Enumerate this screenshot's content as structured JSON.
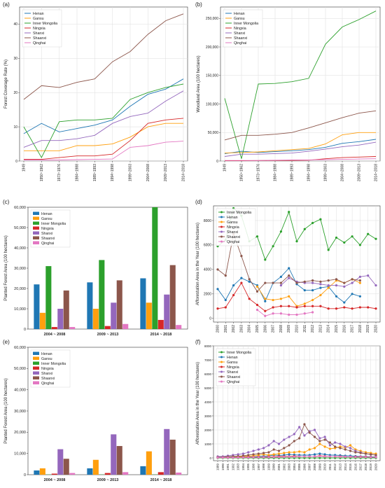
{
  "colors": {
    "Henan": "#1f77b4",
    "Gansu": "#ff9f0e",
    "Inner Mongolia": "#2ca02c",
    "Ningxia": "#d62728",
    "Shanxi": "#9467bd",
    "Shaanxi": "#8c564b",
    "Qinghai": "#e377c2"
  },
  "chart_data": [
    {
      "panel": "(a)",
      "type": "line",
      "ylabel": "Forest Coverage Rate (%)",
      "xlabel": "",
      "categories": [
        "1949",
        "1950~1962",
        "1973~1976",
        "1984~1988",
        "1989~1993",
        "1994~1998",
        "1999~2003",
        "2004~2008",
        "2009~2013",
        "2014~2018"
      ],
      "ylim": [
        0,
        45
      ],
      "yticks": [
        0,
        10,
        20,
        30,
        40
      ],
      "series": [
        {
          "name": "Henan",
          "values": [
            8,
            11,
            8.5,
            9.5,
            10.5,
            12,
            16,
            19.5,
            21,
            24
          ]
        },
        {
          "name": "Gansu",
          "values": [
            3,
            3,
            3,
            4.5,
            4.5,
            5,
            7,
            10,
            11,
            11
          ]
        },
        {
          "name": "Inner Mongolia",
          "values": [
            10,
            1,
            11.5,
            12,
            12,
            12.5,
            18,
            20,
            21.5,
            22.5
          ]
        },
        {
          "name": "Ningxia",
          "values": [
            0.5,
            0.5,
            1,
            1.5,
            1.5,
            2,
            6,
            11,
            12,
            12.5
          ]
        },
        {
          "name": "Shanxi",
          "values": [
            4,
            6,
            6,
            6.5,
            7.5,
            11,
            13,
            14,
            17.5,
            20.5
          ]
        },
        {
          "name": "Shaanxi",
          "values": [
            18,
            22,
            21.5,
            23,
            24,
            29,
            32,
            37,
            41,
            43
          ]
        },
        {
          "name": "Qinghai",
          "values": [
            0.3,
            0.3,
            0.3,
            0.4,
            0.5,
            0.6,
            4,
            4.5,
            5.5,
            5.8
          ]
        }
      ]
    },
    {
      "panel": "(b)",
      "type": "line",
      "ylabel": "Woodland Area (100 hectares)",
      "xlabel": "",
      "categories": [
        "1949",
        "1950~1962",
        "1973~1976",
        "1984~1988",
        "1989~1993",
        "1994~1998",
        "1999~2003",
        "2004~2008",
        "2009~2013",
        "2014~2018"
      ],
      "ylim": [
        0,
        270000
      ],
      "yticks": [
        0,
        50000,
        100000,
        150000,
        200000,
        250000
      ],
      "ytick_labels": [
        "0",
        "50,000",
        "100,000",
        "150,000",
        "200,000",
        "250,000"
      ],
      "series": [
        {
          "name": "Henan",
          "values": [
            13000,
            17000,
            15000,
            16500,
            18000,
            20000,
            24000,
            31000,
            34000,
            38000
          ]
        },
        {
          "name": "Gansu",
          "values": [
            14000,
            15000,
            16000,
            18000,
            20000,
            22000,
            30000,
            46000,
            50000,
            50000
          ]
        },
        {
          "name": "Inner Mongolia",
          "values": [
            110000,
            4000,
            135000,
            136000,
            139000,
            145000,
            205000,
            235000,
            248000,
            263000
          ]
        },
        {
          "name": "Ningxia",
          "values": [
            500,
            500,
            800,
            1000,
            1200,
            1500,
            4000,
            6000,
            7000,
            8000
          ]
        },
        {
          "name": "Shanxi",
          "values": [
            8000,
            12000,
            12000,
            13000,
            14000,
            17000,
            21000,
            25000,
            28000,
            33000
          ]
        },
        {
          "name": "Shaanxi",
          "values": [
            37000,
            45000,
            45000,
            47000,
            50000,
            58000,
            67000,
            76000,
            84000,
            88000
          ]
        },
        {
          "name": "Qinghai",
          "values": [
            1000,
            1000,
            1000,
            1500,
            2000,
            2000,
            2500,
            3000,
            3500,
            4000
          ]
        }
      ]
    },
    {
      "panel": "(c)",
      "type": "bar",
      "ylabel": "Planted Forest Area (100 hectares)",
      "xlabel": "",
      "categories": [
        "2004 ~ 2008",
        "2009 ~ 2013",
        "2014 ~ 2018"
      ],
      "ylim": [
        0,
        60000
      ],
      "yticks": [
        0,
        10000,
        20000,
        30000,
        40000,
        50000,
        60000
      ],
      "ytick_labels": [
        "0",
        "10,000",
        "20,000",
        "30,000",
        "40,000",
        "50,000",
        "60,000"
      ],
      "series": [
        {
          "name": "Henan",
          "values": [
            22000,
            23000,
            25000
          ]
        },
        {
          "name": "Gansu",
          "values": [
            8000,
            10000,
            13000
          ]
        },
        {
          "name": "Inner Mongolia",
          "values": [
            31000,
            34000,
            60000
          ]
        },
        {
          "name": "Ningxia",
          "values": [
            1000,
            1500,
            4500
          ]
        },
        {
          "name": "Shanxi",
          "values": [
            10000,
            13000,
            17000
          ]
        },
        {
          "name": "Shaanxi",
          "values": [
            19000,
            24000,
            31500
          ]
        },
        {
          "name": "Qinghai",
          "values": [
            1000,
            2500,
            2000
          ]
        }
      ]
    },
    {
      "panel": "(d)",
      "type": "line",
      "ylabel": "Afforestation Area in the Year (100 hectares)",
      "xlabel": "",
      "categories": [
        "2000",
        "2001",
        "2002",
        "2003",
        "2004",
        "2005",
        "2006",
        "2007",
        "2008",
        "2009",
        "2010",
        "2011",
        "2012",
        "2013",
        "2014",
        "2015",
        "2016",
        "2017",
        "2018",
        "2019",
        "2020"
      ],
      "ylim": [
        -300,
        9200
      ],
      "yticks": [
        0,
        2000,
        4000,
        6000,
        8000
      ],
      "series": [
        {
          "name": "Inner Mongolia",
          "values": [
            5900,
            6400,
            9000,
            8400,
            6300,
            6700,
            4800,
            5900,
            7100,
            8700,
            6300,
            7300,
            7800,
            8100,
            5600,
            6600,
            6200,
            6700,
            6000,
            6900,
            6500
          ]
        },
        {
          "name": "Henan",
          "values": [
            2400,
            1500,
            2700,
            3300,
            3000,
            2700,
            1400,
            2900,
            3400,
            4100,
            2800,
            2300,
            2300,
            2500,
            2600,
            1800,
            1300,
            2000,
            1800,
            null,
            null
          ]
        },
        {
          "name": "Gansu",
          "values": [
            null,
            null,
            null,
            null,
            null,
            2600,
            1600,
            1500,
            1600,
            1800,
            1000,
            1200,
            1500,
            1900,
            2500,
            3100,
            2900,
            3200,
            2900,
            null,
            null
          ]
        },
        {
          "name": "Ningxia",
          "values": [
            800,
            900,
            1900,
            2900,
            1600,
            1100,
            600,
            900,
            1000,
            1000,
            900,
            1000,
            1000,
            1000,
            800,
            800,
            900,
            800,
            900,
            900,
            800
          ]
        },
        {
          "name": "Shanxi",
          "values": [
            null,
            null,
            null,
            null,
            null,
            null,
            null,
            null,
            2700,
            3300,
            3000,
            2900,
            2900,
            2800,
            2700,
            2700,
            2600,
            2900,
            3400,
            3500,
            2700
          ]
        },
        {
          "name": "Shaanxi",
          "values": [
            4000,
            3500,
            6900,
            5100,
            3200,
            2200,
            2900,
            2900,
            2900,
            3500,
            2900,
            3000,
            3100,
            3000,
            3100,
            3200,
            2900,
            3200,
            3100,
            null,
            null
          ]
        },
        {
          "name": "Qinghai",
          "values": [
            null,
            null,
            null,
            null,
            null,
            700,
            200,
            400,
            400,
            300,
            300,
            400,
            500,
            null,
            null,
            null,
            null,
            null,
            null,
            null,
            null
          ]
        }
      ]
    },
    {
      "panel": "(e)",
      "type": "bar",
      "ylabel": "Planted Forest Area (100 hectares)",
      "xlabel": "",
      "categories": [
        "2004 ~ 2008",
        "2009 ~ 2013",
        "2014 ~ 2018"
      ],
      "ylim": [
        0,
        60000
      ],
      "yticks": [
        0,
        10000,
        20000,
        30000,
        40000,
        50000,
        60000
      ],
      "ytick_labels": [
        "0",
        "10,000",
        "20,000",
        "30,000",
        "40,000",
        "50,000",
        "60,000"
      ],
      "series": [
        {
          "name": "Henan",
          "values": [
            2000,
            3000,
            4000
          ]
        },
        {
          "name": "Gansu",
          "values": [
            3000,
            7000,
            11000
          ]
        },
        {
          "name": "Inner Mongolia",
          "values": [
            100,
            100,
            100
          ]
        },
        {
          "name": "Ningxia",
          "values": [
            500,
            800,
            1200
          ]
        },
        {
          "name": "Shanxi",
          "values": [
            12000,
            19000,
            21500
          ]
        },
        {
          "name": "Shaanxi",
          "values": [
            7500,
            13500,
            16500
          ]
        },
        {
          "name": "Qinghai",
          "values": [
            800,
            1200,
            1000
          ]
        }
      ]
    },
    {
      "panel": "(f)",
      "type": "line",
      "ylabel": "Afforestation Area in the Year (100 hectares)",
      "xlabel": "",
      "categories": [
        "1989",
        "1990",
        "1991",
        "1992",
        "1993",
        "1994",
        "1995",
        "1996",
        "1997",
        "1998",
        "1999",
        "2000",
        "2001",
        "2002",
        "2003",
        "2004",
        "2005",
        "2006",
        "2007",
        "2008",
        "2009",
        "2010",
        "2011",
        "2012",
        "2013",
        "2014",
        "2015",
        "2016",
        "2017",
        "2018",
        "2019",
        "2020"
      ],
      "ylim": [
        -200,
        8000
      ],
      "yticks": [
        0,
        1000,
        2000,
        3000,
        4000,
        5000,
        6000,
        7000,
        8000
      ],
      "series": [
        {
          "name": "Inner Mongolia",
          "values": [
            0,
            0,
            0,
            0,
            0,
            0,
            0,
            0,
            0,
            0,
            0,
            0,
            0,
            0,
            0,
            0,
            0,
            0,
            0,
            0,
            0,
            0,
            0,
            0,
            0,
            0,
            0,
            0,
            0,
            0,
            0,
            0
          ]
        },
        {
          "name": "Henan",
          "values": [
            50,
            50,
            50,
            50,
            50,
            60,
            70,
            80,
            100,
            120,
            150,
            200,
            180,
            200,
            250,
            220,
            200,
            200,
            200,
            250,
            300,
            250,
            200,
            200,
            180,
            150,
            150,
            120,
            100,
            100,
            80,
            80
          ]
        },
        {
          "name": "Gansu",
          "values": [
            50,
            50,
            80,
            100,
            80,
            100,
            120,
            150,
            200,
            250,
            200,
            250,
            300,
            350,
            400,
            400,
            450,
            400,
            600,
            700,
            1000,
            800,
            650,
            700,
            800,
            750,
            900,
            600,
            500,
            400,
            350,
            300
          ]
        },
        {
          "name": "Ningxia",
          "values": [
            30,
            30,
            30,
            30,
            40,
            40,
            50,
            50,
            60,
            60,
            80,
            80,
            100,
            100,
            100,
            120,
            100,
            100,
            100,
            100,
            150,
            120,
            100,
            100,
            100,
            80,
            80,
            80,
            80,
            80,
            60,
            60
          ]
        },
        {
          "name": "Shanxi",
          "values": [
            100,
            100,
            150,
            200,
            250,
            300,
            400,
            500,
            600,
            700,
            900,
            1200,
            1000,
            1300,
            1500,
            1700,
            2200,
            1600,
            1900,
            2000,
            1400,
            1500,
            900,
            1100,
            1000,
            800,
            700,
            500,
            400,
            300,
            250,
            200
          ]
        },
        {
          "name": "Shaanxi",
          "values": [
            50,
            50,
            80,
            100,
            120,
            150,
            200,
            250,
            300,
            350,
            400,
            600,
            500,
            700,
            900,
            1200,
            1400,
            2400,
            1800,
            1500,
            1200,
            1300,
            1100,
            800,
            700,
            600,
            500,
            400,
            350,
            300,
            250,
            200
          ]
        },
        {
          "name": "Qinghai",
          "values": [
            20,
            20,
            20,
            20,
            30,
            30,
            30,
            40,
            40,
            50,
            50,
            60,
            60,
            70,
            80,
            80,
            100,
            100,
            100,
            100,
            120,
            100,
            100,
            100,
            80,
            80,
            80,
            60,
            60,
            60,
            50,
            50
          ]
        }
      ]
    }
  ]
}
